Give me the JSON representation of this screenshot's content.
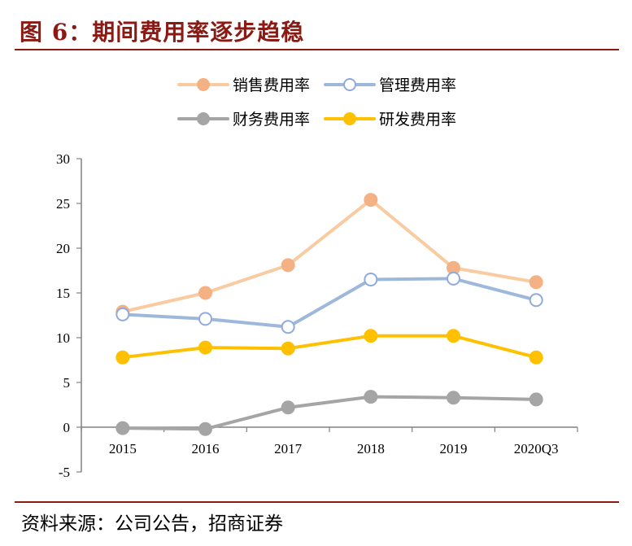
{
  "figure": {
    "title": "图 6：期间费用率逐步趋稳",
    "source": "资料来源：公司公告，招商证券"
  },
  "chart_data": {
    "type": "line",
    "title": "期间费用率逐步趋稳",
    "xlabel": "",
    "ylabel": "",
    "categories": [
      "2015",
      "2016",
      "2017",
      "2018",
      "2019",
      "2020Q3"
    ],
    "ylim": [
      -5,
      30
    ],
    "yticks": [
      -5,
      0,
      5,
      10,
      15,
      20,
      25,
      30
    ],
    "ytick_labels": [
      "-5",
      "0",
      "5",
      "10",
      "15",
      "20",
      "25",
      "30"
    ],
    "grid": false,
    "legend_position": "top-center",
    "series": [
      {
        "name": "销售费用率",
        "values": [
          12.9,
          15.0,
          18.1,
          25.4,
          17.8,
          16.2
        ],
        "line_color": "#F9CBA0",
        "marker_color": "#F4B183",
        "marker_fill": "#F4B183"
      },
      {
        "name": "管理费用率",
        "values": [
          12.6,
          12.1,
          11.2,
          16.5,
          16.6,
          14.2
        ],
        "line_color": "#9DB8DB",
        "marker_color": "#8FAADC",
        "marker_fill": "#ffffff"
      },
      {
        "name": "财务费用率",
        "values": [
          -0.1,
          -0.2,
          2.2,
          3.4,
          3.3,
          3.1
        ],
        "line_color": "#A5A5A5",
        "marker_color": "#A5A5A5",
        "marker_fill": "#A5A5A5"
      },
      {
        "name": "研发费用率",
        "values": [
          7.8,
          8.9,
          8.8,
          10.2,
          10.2,
          7.8
        ],
        "line_color": "#FFC000",
        "marker_color": "#FFC000",
        "marker_fill": "#FFC000"
      }
    ]
  }
}
